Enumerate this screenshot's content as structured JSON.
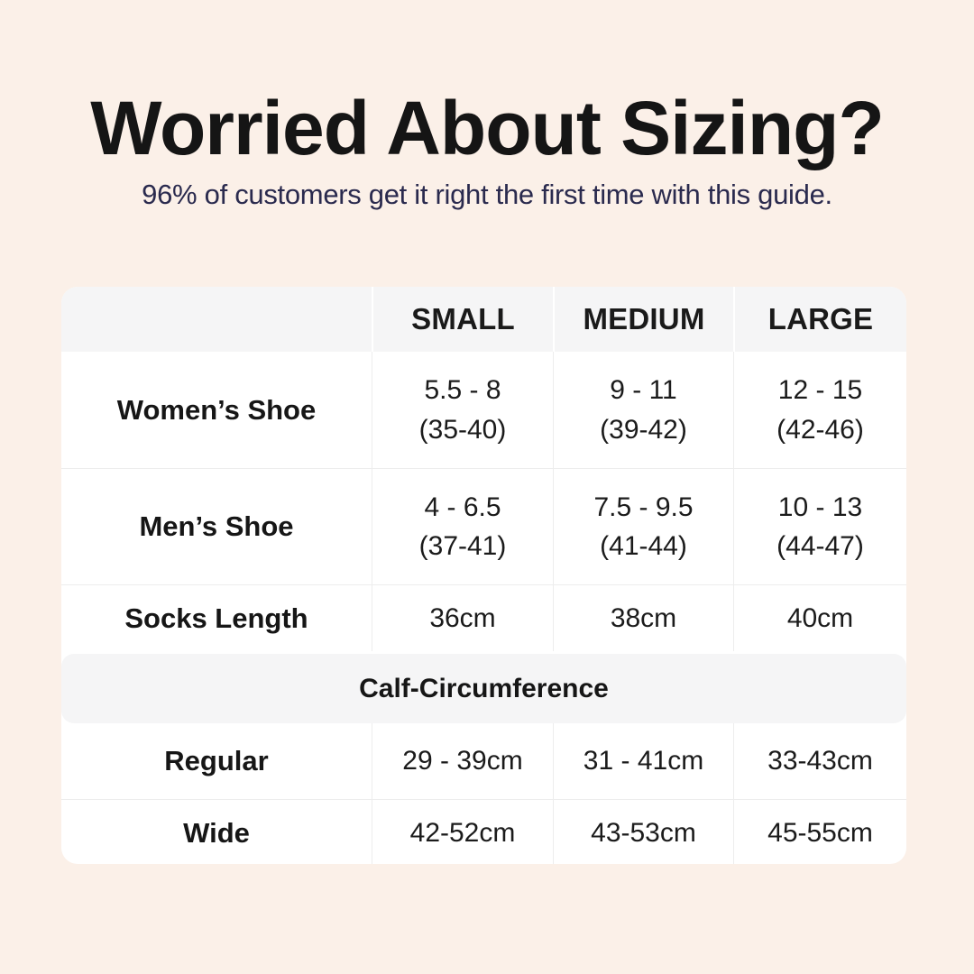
{
  "page": {
    "title": "Worried About Sizing?",
    "subtitle": "96% of customers get it right the first time with this guide.",
    "colors": {
      "background": "#fbf0e8",
      "title": "#151515",
      "subtitle_navy": "#2a2a4e",
      "table_background": "#ffffff",
      "band_gray": "#f5f5f6",
      "divider": "#ededed"
    }
  },
  "table": {
    "columns": [
      "SMALL",
      "MEDIUM",
      "LARGE"
    ],
    "rows": [
      {
        "label": "Women’s Shoe",
        "cells": [
          {
            "line1": "5.5 - 8",
            "line2": "(35-40)"
          },
          {
            "line1": "9 - 11",
            "line2": "(39-42)"
          },
          {
            "line1": "12 - 15",
            "line2": "(42-46)"
          }
        ]
      },
      {
        "label": "Men’s Shoe",
        "cells": [
          {
            "line1": "4 - 6.5",
            "line2": "(37-41)"
          },
          {
            "line1": "7.5 - 9.5",
            "line2": "(41-44)"
          },
          {
            "line1": "10 - 13",
            "line2": "(44-47)"
          }
        ]
      },
      {
        "label": "Socks Length",
        "cells": [
          {
            "line1": "36cm"
          },
          {
            "line1": "38cm"
          },
          {
            "line1": "40cm"
          }
        ]
      }
    ],
    "section_header": "Calf-Circumference",
    "section_rows": [
      {
        "label": "Regular",
        "cells": [
          "29 - 39cm",
          "31 - 41cm",
          "33-43cm"
        ]
      },
      {
        "label": "Wide",
        "cells": [
          "42-52cm",
          "43-53cm",
          "45-55cm"
        ]
      }
    ]
  }
}
